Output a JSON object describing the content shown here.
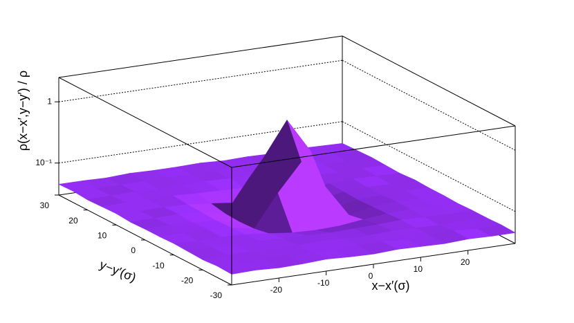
{
  "chart_data": {
    "type": "surface",
    "x_label": "x−x′(σ)",
    "y_label": "y−y′(σ)",
    "z_label": "ρ(x−x′,y−y′) / ρ",
    "color": "#8a2be2",
    "log_z": true,
    "grid": true,
    "x": [
      -30,
      -25,
      -20,
      -15,
      -10,
      -5,
      0,
      5,
      10,
      15,
      20,
      25,
      30
    ],
    "y": [
      -30,
      -25,
      -20,
      -15,
      -10,
      -5,
      0,
      5,
      10,
      15,
      20,
      25,
      30
    ],
    "z": [
      [
        0.045,
        0.046,
        0.044,
        0.045,
        0.047,
        0.045,
        0.044,
        0.046,
        0.045,
        0.044,
        0.046,
        0.045,
        0.045
      ],
      [
        0.046,
        0.044,
        0.045,
        0.047,
        0.045,
        0.044,
        0.045,
        0.046,
        0.044,
        0.045,
        0.047,
        0.044,
        0.046
      ],
      [
        0.044,
        0.045,
        0.046,
        0.044,
        0.045,
        0.046,
        0.045,
        0.044,
        0.046,
        0.045,
        0.044,
        0.046,
        0.045
      ],
      [
        0.045,
        0.047,
        0.044,
        0.045,
        0.044,
        0.043,
        0.042,
        0.043,
        0.044,
        0.046,
        0.045,
        0.044,
        0.045
      ],
      [
        0.046,
        0.044,
        0.045,
        0.044,
        0.04,
        0.036,
        0.035,
        0.036,
        0.04,
        0.044,
        0.045,
        0.046,
        0.044
      ],
      [
        0.045,
        0.045,
        0.046,
        0.043,
        0.036,
        0.12,
        0.34,
        0.12,
        0.036,
        0.043,
        0.046,
        0.045,
        0.045
      ],
      [
        0.045,
        0.046,
        0.044,
        0.042,
        0.035,
        0.34,
        1.25,
        0.34,
        0.035,
        0.042,
        0.044,
        0.046,
        0.045
      ],
      [
        0.044,
        0.045,
        0.046,
        0.043,
        0.036,
        0.12,
        0.34,
        0.12,
        0.036,
        0.043,
        0.045,
        0.044,
        0.046
      ],
      [
        0.046,
        0.044,
        0.045,
        0.044,
        0.04,
        0.036,
        0.035,
        0.036,
        0.04,
        0.044,
        0.046,
        0.045,
        0.044
      ],
      [
        0.045,
        0.046,
        0.044,
        0.046,
        0.044,
        0.043,
        0.042,
        0.043,
        0.044,
        0.045,
        0.044,
        0.046,
        0.045
      ],
      [
        0.044,
        0.045,
        0.046,
        0.044,
        0.045,
        0.046,
        0.045,
        0.044,
        0.046,
        0.045,
        0.045,
        0.044,
        0.046
      ],
      [
        0.046,
        0.044,
        0.045,
        0.045,
        0.046,
        0.044,
        0.045,
        0.046,
        0.044,
        0.046,
        0.044,
        0.045,
        0.045
      ],
      [
        0.045,
        0.045,
        0.044,
        0.046,
        0.045,
        0.045,
        0.046,
        0.044,
        0.045,
        0.044,
        0.046,
        0.045,
        0.044
      ]
    ],
    "xlim": [
      -30,
      30
    ],
    "ylim": [
      -30,
      30
    ],
    "zlim": [
      0.03,
      2.5
    ],
    "xticks": [
      -20,
      -10,
      0,
      10,
      20
    ],
    "yticks": [
      -30,
      -20,
      -10,
      0,
      10,
      20,
      30
    ],
    "zticks": [
      {
        "value": 0.1,
        "label": "10⁻¹"
      },
      1
    ]
  }
}
